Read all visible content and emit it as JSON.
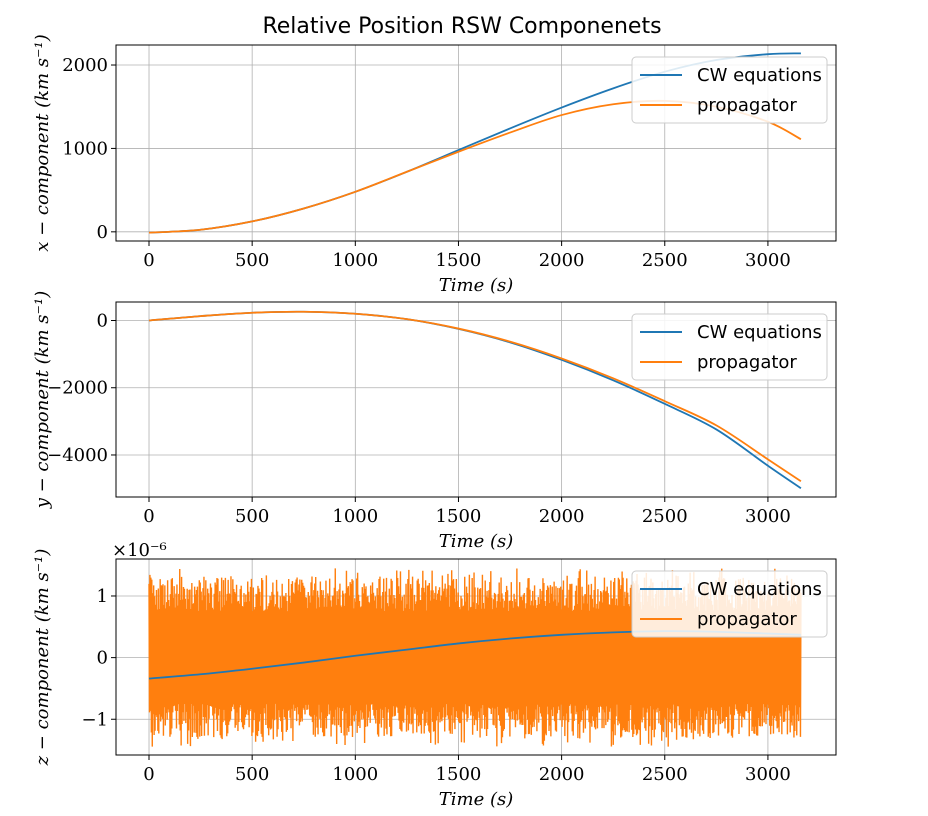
{
  "figure": {
    "title": "Relative Position RSW Componenets"
  },
  "colors": {
    "cw": "#1f77b4",
    "propagator": "#ff7f0e",
    "grid": "#b0b0b0",
    "legend_bg": "#ffffff"
  },
  "chart_data": [
    {
      "type": "line",
      "id": "x",
      "xlabel": "Time (s)",
      "ylabel": "x − component (km s⁻¹)",
      "xlim": [
        -160,
        3330
      ],
      "ylim": [
        -110,
        2240
      ],
      "xticks": [
        0,
        500,
        1000,
        1500,
        2000,
        2500,
        3000
      ],
      "xtick_labels": [
        "0",
        "500",
        "1000",
        "1500",
        "2000",
        "2500",
        "3000"
      ],
      "yticks": [
        0,
        1000,
        2000
      ],
      "ytick_labels": [
        "0",
        "1000",
        "2000"
      ],
      "offset_label": "",
      "grid": true,
      "legend_position": "upper-right",
      "series": [
        {
          "name": "CW equations",
          "color": "#1f77b4",
          "x": [
            0,
            250,
            500,
            750,
            1000,
            1250,
            1500,
            1750,
            2000,
            2250,
            2500,
            2750,
            3000,
            3160
          ],
          "y": [
            -10,
            25,
            125,
            280,
            480,
            720,
            980,
            1240,
            1490,
            1720,
            1920,
            2060,
            2130,
            2140
          ]
        },
        {
          "name": "propagator",
          "color": "#ff7f0e",
          "x": [
            0,
            250,
            500,
            750,
            1000,
            1250,
            1500,
            1750,
            2000,
            2250,
            2500,
            2750,
            3000,
            3160
          ],
          "y": [
            -10,
            25,
            125,
            280,
            480,
            720,
            960,
            1190,
            1400,
            1530,
            1570,
            1500,
            1320,
            1110
          ]
        }
      ]
    },
    {
      "type": "line",
      "id": "y",
      "xlabel": "Time (s)",
      "ylabel": "y − component (km s⁻¹)",
      "xlim": [
        -160,
        3330
      ],
      "ylim": [
        -5250,
        550
      ],
      "xticks": [
        0,
        500,
        1000,
        1500,
        2000,
        2500,
        3000
      ],
      "xtick_labels": [
        "0",
        "500",
        "1000",
        "1500",
        "2000",
        "2500",
        "3000"
      ],
      "yticks": [
        0,
        -2000,
        -4000
      ],
      "ytick_labels": [
        "0",
        "−2000",
        "−4000"
      ],
      "offset_label": "",
      "grid": true,
      "legend_position": "upper-right",
      "series": [
        {
          "name": "CW equations",
          "color": "#1f77b4",
          "x": [
            0,
            250,
            500,
            750,
            1000,
            1250,
            1500,
            1750,
            2000,
            2250,
            2500,
            2750,
            3000,
            3160
          ],
          "y": [
            0,
            130,
            230,
            260,
            200,
            40,
            -250,
            -650,
            -1170,
            -1780,
            -2480,
            -3240,
            -4320,
            -4990
          ]
        },
        {
          "name": "propagator",
          "color": "#ff7f0e",
          "x": [
            0,
            250,
            500,
            750,
            1000,
            1250,
            1500,
            1750,
            2000,
            2250,
            2500,
            2750,
            3000,
            3160
          ],
          "y": [
            0,
            130,
            230,
            260,
            200,
            40,
            -240,
            -630,
            -1130,
            -1720,
            -2400,
            -3120,
            -4130,
            -4780
          ]
        }
      ]
    },
    {
      "type": "line",
      "id": "z",
      "xlabel": "Time (s)",
      "ylabel": "z − component (km s⁻¹)",
      "xlim": [
        -160,
        3330
      ],
      "ylim": [
        -1.58,
        1.6
      ],
      "xticks": [
        0,
        500,
        1000,
        1500,
        2000,
        2500,
        3000
      ],
      "xtick_labels": [
        "0",
        "500",
        "1000",
        "1500",
        "2000",
        "2500",
        "3000"
      ],
      "yticks": [
        1,
        0,
        -1
      ],
      "ytick_labels": [
        "1",
        "0",
        "−1"
      ],
      "offset_label": "×10⁻⁶",
      "grid": true,
      "legend_position": "upper-right",
      "series": [
        {
          "name": "CW equations",
          "color": "#1f77b4",
          "x": [
            0,
            250,
            500,
            750,
            1000,
            1250,
            1500,
            1750,
            2000,
            2250,
            2500,
            2750,
            3000,
            3160
          ],
          "y": [
            -0.34,
            -0.27,
            -0.18,
            -0.08,
            0.03,
            0.13,
            0.23,
            0.31,
            0.37,
            0.41,
            0.43,
            0.42,
            0.39,
            0.37
          ]
        },
        {
          "name": "propagator",
          "color": "#ff7f0e",
          "style": "dense-oscillation",
          "x_range": [
            0,
            3160
          ],
          "envelope_min": -1.3,
          "envelope_max": 1.3,
          "peak_max": 1.45,
          "peak_min": -1.45
        }
      ]
    }
  ]
}
